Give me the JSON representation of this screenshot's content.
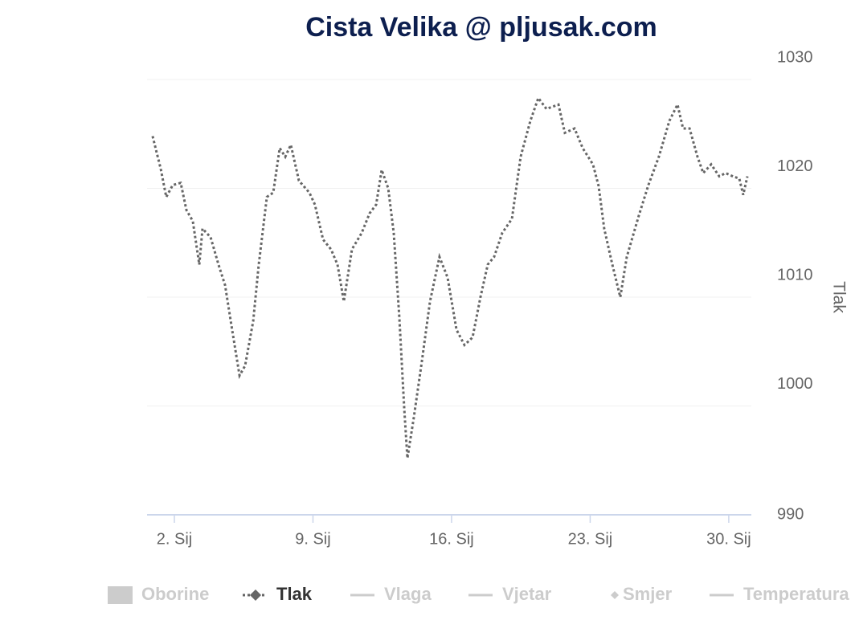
{
  "chart_data": {
    "type": "line",
    "title": "Cista Velika @ pljusak.com",
    "y_axis_label": "Tlak",
    "x": [
      0.9,
      1.31,
      1.59,
      1.92,
      2.32,
      2.61,
      2.93,
      3.26,
      3.42,
      3.83,
      4.23,
      4.56,
      4.88,
      5.29,
      5.57,
      5.98,
      6.26,
      6.67,
      6.99,
      7.32,
      7.6,
      7.88,
      8.29,
      8.82,
      9.1,
      9.51,
      9.91,
      10.24,
      10.56,
      10.97,
      11.46,
      11.86,
      12.19,
      12.47,
      12.8,
      13.08,
      13.36,
      13.61,
      13.77,
      14.09,
      14.5,
      14.91,
      15.39,
      15.8,
      16.25,
      16.65,
      17.06,
      17.46,
      17.83,
      18.15,
      18.56,
      19.05,
      19.49,
      19.98,
      20.38,
      20.79,
      21.4,
      21.72,
      22.21,
      22.62,
      23.14,
      23.43,
      23.71,
      24.12,
      24.52,
      24.85,
      25.46,
      25.94,
      26.47,
      27.0,
      27.41,
      27.69,
      28.02,
      28.42,
      28.71,
      29.11,
      29.52,
      29.84,
      30.21,
      30.53,
      30.73,
      30.94
    ],
    "series": [
      {
        "name": "Tlak",
        "color": "#666666",
        "values": [
          1024.8,
          1021.8,
          1019.2,
          1020.3,
          1020.5,
          1018.0,
          1017.0,
          1013.0,
          1016.3,
          1015.5,
          1013.0,
          1011.1,
          1007.4,
          1002.8,
          1003.7,
          1007.8,
          1013.0,
          1019.2,
          1019.6,
          1023.7,
          1022.9,
          1024.0,
          1020.7,
          1019.6,
          1018.5,
          1015.3,
          1014.4,
          1013.0,
          1009.6,
          1014.4,
          1015.9,
          1017.7,
          1018.5,
          1021.7,
          1020.0,
          1015.9,
          1008.2,
          999.7,
          995.2,
          998.9,
          1004.1,
          1009.6,
          1013.7,
          1011.8,
          1007.0,
          1005.6,
          1006.3,
          1010.0,
          1013.0,
          1013.7,
          1015.9,
          1017.2,
          1022.9,
          1026.2,
          1028.3,
          1027.3,
          1027.7,
          1025.1,
          1025.5,
          1023.7,
          1022.2,
          1020.2,
          1016.3,
          1013.0,
          1010.0,
          1013.7,
          1017.5,
          1020.3,
          1022.9,
          1026.2,
          1027.7,
          1025.5,
          1025.5,
          1022.9,
          1021.4,
          1022.2,
          1021.1,
          1021.4,
          1021.1,
          1020.9,
          1019.4,
          1021.1
        ]
      }
    ],
    "hidden_series": [
      {
        "name": "Oborine",
        "symbol": "box"
      },
      {
        "name": "Vlaga",
        "symbol": "line"
      },
      {
        "name": "Vjetar",
        "symbol": "line"
      },
      {
        "name": "Smjer",
        "symbol": "diamond"
      },
      {
        "name": "Temperatura",
        "symbol": "line"
      }
    ],
    "xlim": [
      0.62,
      31.14
    ],
    "xticks": [
      {
        "value": 2,
        "label": "2. Sij"
      },
      {
        "value": 9,
        "label": "9. Sij"
      },
      {
        "value": 16,
        "label": "16. Sij"
      },
      {
        "value": 23,
        "label": "23. Sij"
      },
      {
        "value": 30,
        "label": "30. Sij"
      }
    ],
    "ylim": [
      990,
      1030
    ],
    "yticks": [
      990,
      1000,
      1010,
      1020,
      1030
    ],
    "grid": true,
    "y_axis_side": "right"
  }
}
